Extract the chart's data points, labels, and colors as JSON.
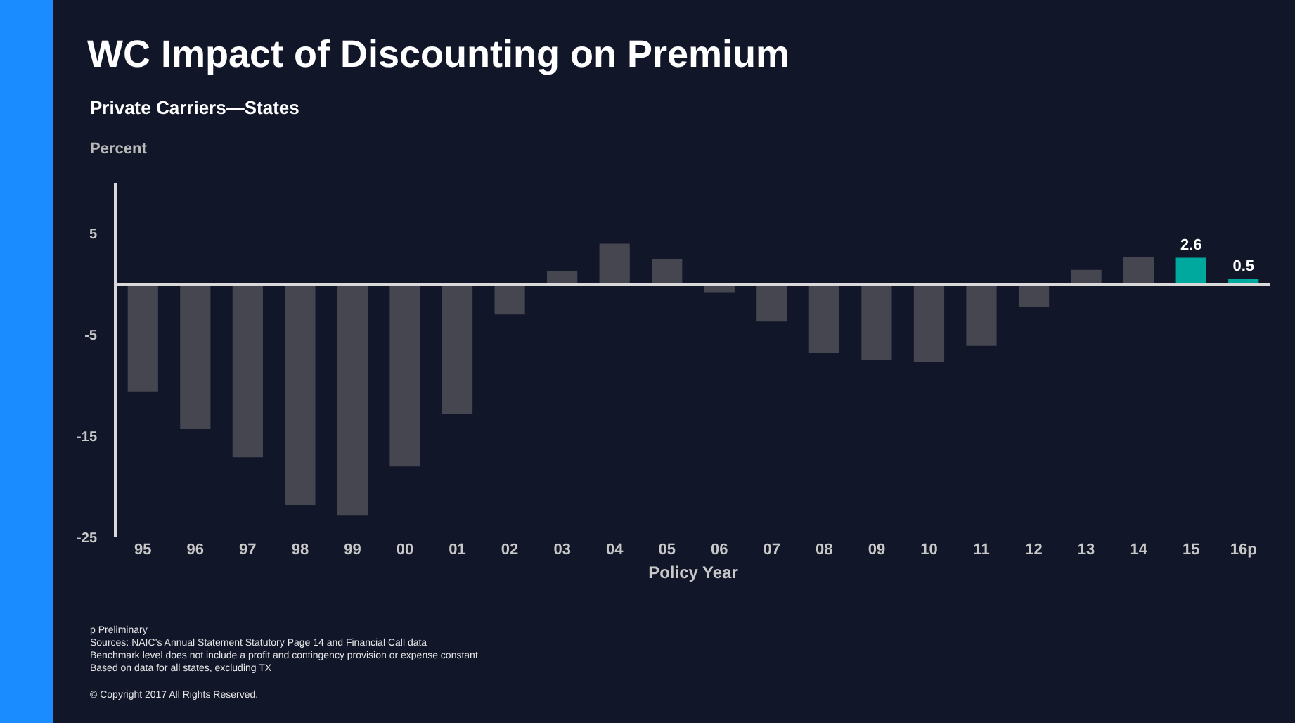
{
  "chart_data": {
    "type": "bar",
    "title": "WC Impact of Discounting on Premium",
    "subtitle": "Private Carriers—States",
    "ylabel": "Percent",
    "xlabel": "Policy Year",
    "categories": [
      "95",
      "96",
      "97",
      "98",
      "99",
      "00",
      "01",
      "02",
      "03",
      "04",
      "05",
      "06",
      "07",
      "08",
      "09",
      "10",
      "11",
      "12",
      "13",
      "14",
      "15",
      "16p"
    ],
    "values": [
      -10.6,
      -14.3,
      -17.1,
      -21.8,
      -22.8,
      -18.0,
      -12.8,
      -3.0,
      1.3,
      4.0,
      2.5,
      -0.8,
      -3.7,
      -6.8,
      -7.5,
      -7.7,
      -6.1,
      -2.3,
      1.4,
      2.7,
      2.6,
      0.5
    ],
    "colors": [
      "#45464f",
      "#45464f",
      "#45464f",
      "#45464f",
      "#45464f",
      "#45464f",
      "#45464f",
      "#45464f",
      "#45464f",
      "#45464f",
      "#45464f",
      "#45464f",
      "#45464f",
      "#45464f",
      "#45464f",
      "#45464f",
      "#45464f",
      "#45464f",
      "#45464f",
      "#45464f",
      "#00a99d",
      "#00a99d"
    ],
    "value_labels": [
      null,
      null,
      null,
      null,
      null,
      null,
      null,
      null,
      null,
      null,
      null,
      null,
      null,
      null,
      null,
      null,
      null,
      null,
      null,
      null,
      "2.6",
      "0.5"
    ],
    "ylim": [
      -25,
      10
    ],
    "yticks": [
      -25,
      -15,
      -5,
      5
    ],
    "ref_lines": [
      {
        "axis": "y",
        "value": 0,
        "color": "#d9d9d9"
      }
    ],
    "annotations": [
      "p Preliminary",
      "Sources: NAIC’s Annual Statement Statutory Page 14 and Financial Call data",
      "Benchmark level does not include a profit and contingency provision or expense constant",
      "Based on data for all states, excluding TX",
      "© Copyright 2017 All Rights Reserved."
    ]
  }
}
